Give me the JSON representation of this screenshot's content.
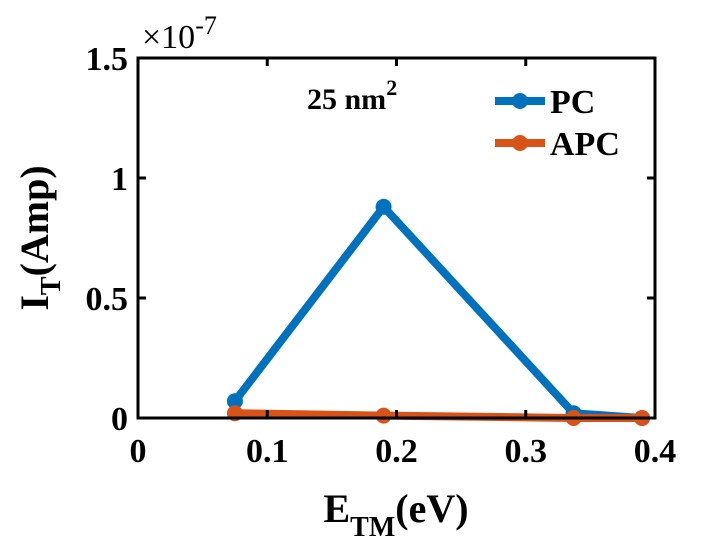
{
  "chart_data": {
    "type": "line",
    "xlabel_main": "E",
    "xlabel_sub": "TM",
    "xlabel_unit": "(eV)",
    "ylabel_main": "I",
    "ylabel_sub": "T",
    "ylabel_unit": "(Amp)",
    "y_exponent_base": "×10",
    "y_exponent_power": "-7",
    "annotation_main": "25 nm",
    "annotation_sup": "2",
    "xlim": [
      0,
      0.4
    ],
    "ylim": [
      0,
      1.5
    ],
    "x_ticks": [
      0,
      0.1,
      0.2,
      0.3,
      0.4
    ],
    "x_tick_labels": [
      "0",
      "0.1",
      "0.2",
      "0.3",
      "0.4"
    ],
    "y_ticks": [
      0,
      0.5,
      1,
      1.5
    ],
    "y_tick_labels": [
      "0",
      "0.5",
      "1",
      "1.5"
    ],
    "grid": false,
    "legend_position": "top-right",
    "series": [
      {
        "name": "PC",
        "color": "#0072BD",
        "x": [
          0.075,
          0.19,
          0.337,
          0.39
        ],
        "y": [
          0.07,
          0.88,
          0.02,
          0.0
        ]
      },
      {
        "name": "APC",
        "color": "#D95319",
        "x": [
          0.075,
          0.19,
          0.337,
          0.39
        ],
        "y": [
          0.02,
          0.01,
          0.0,
          0.0
        ]
      }
    ]
  }
}
